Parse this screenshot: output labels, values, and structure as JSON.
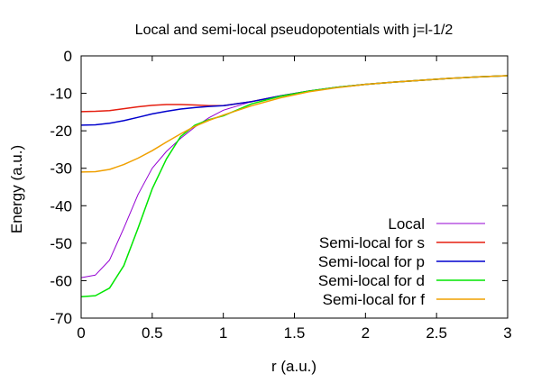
{
  "chart_data": {
    "type": "line",
    "title": "Local and semi-local pseudopotentials with j=l-1/2",
    "xlabel": "r (a.u.)",
    "ylabel": "Energy (a.u.)",
    "xlim": [
      0,
      3
    ],
    "ylim": [
      -70,
      0
    ],
    "xticks": [
      0,
      0.5,
      1,
      1.5,
      2,
      2.5,
      3
    ],
    "xtick_labels": [
      "0",
      "0.5",
      "1",
      "1.5",
      "2",
      "2.5",
      "3"
    ],
    "yticks": [
      0,
      -10,
      -20,
      -30,
      -40,
      -50,
      -60,
      -70
    ],
    "ytick_labels": [
      "0",
      "-10",
      "-20",
      "-30",
      "-40",
      "-50",
      "-60",
      "-70"
    ],
    "grid": false,
    "legend_position": "bottom-right",
    "series": [
      {
        "name": "Local",
        "color": "#9400d3",
        "x": [
          0,
          0.1,
          0.2,
          0.3,
          0.4,
          0.5,
          0.6,
          0.7,
          0.8,
          0.9,
          1.0,
          1.2,
          1.4,
          1.6,
          1.8,
          2.0,
          2.2,
          2.4,
          2.6,
          2.8,
          3.0
        ],
        "y": [
          -59.2,
          -58.5,
          -54.5,
          -46.0,
          -37.0,
          -30.0,
          -25.5,
          -22.0,
          -19.0,
          -16.5,
          -14.5,
          -12.2,
          -10.7,
          -9.4,
          -8.4,
          -7.6,
          -7.0,
          -6.5,
          -6.0,
          -5.6,
          -5.3
        ]
      },
      {
        "name": "Semi-local for s",
        "color": "#e51e10",
        "x": [
          0,
          0.1,
          0.2,
          0.3,
          0.4,
          0.5,
          0.6,
          0.7,
          0.8,
          0.9,
          1.0,
          1.2,
          1.4,
          1.6,
          1.8,
          2.0,
          2.2,
          2.4,
          2.6,
          2.8,
          3.0
        ],
        "y": [
          -14.9,
          -14.8,
          -14.6,
          -14.1,
          -13.6,
          -13.2,
          -13.0,
          -13.0,
          -13.1,
          -13.3,
          -13.3,
          -12.2,
          -10.7,
          -9.4,
          -8.4,
          -7.6,
          -7.0,
          -6.5,
          -6.0,
          -5.6,
          -5.3
        ]
      },
      {
        "name": "Semi-local for p",
        "color": "#0000cd",
        "x": [
          0,
          0.1,
          0.2,
          0.3,
          0.4,
          0.5,
          0.6,
          0.7,
          0.8,
          0.9,
          1.0,
          1.2,
          1.4,
          1.6,
          1.8,
          2.0,
          2.2,
          2.4,
          2.6,
          2.8,
          3.0
        ],
        "y": [
          -18.5,
          -18.4,
          -18.0,
          -17.3,
          -16.4,
          -15.5,
          -14.8,
          -14.2,
          -13.8,
          -13.5,
          -13.3,
          -12.2,
          -10.7,
          -9.4,
          -8.4,
          -7.6,
          -7.0,
          -6.5,
          -6.0,
          -5.6,
          -5.3
        ]
      },
      {
        "name": "Semi-local for d",
        "color": "#00e600",
        "x": [
          0,
          0.1,
          0.2,
          0.3,
          0.4,
          0.5,
          0.6,
          0.7,
          0.8,
          0.9,
          1.0,
          1.2,
          1.4,
          1.6,
          1.8,
          2.0,
          2.2,
          2.4,
          2.6,
          2.8,
          3.0
        ],
        "y": [
          -64.3,
          -64.0,
          -62.0,
          -56.0,
          -46.0,
          -35.5,
          -27.5,
          -21.5,
          -18.5,
          -17.0,
          -16.0,
          -12.8,
          -10.8,
          -9.4,
          -8.4,
          -7.6,
          -7.0,
          -6.5,
          -6.0,
          -5.6,
          -5.3
        ]
      },
      {
        "name": "Semi-local for f",
        "color": "#f0a000",
        "x": [
          0,
          0.1,
          0.2,
          0.3,
          0.4,
          0.5,
          0.6,
          0.7,
          0.8,
          0.9,
          1.0,
          1.2,
          1.4,
          1.6,
          1.8,
          2.0,
          2.2,
          2.4,
          2.6,
          2.8,
          3.0
        ],
        "y": [
          -31.0,
          -30.9,
          -30.3,
          -29.0,
          -27.3,
          -25.3,
          -23.0,
          -20.8,
          -18.8,
          -17.2,
          -15.8,
          -13.3,
          -11.2,
          -9.6,
          -8.5,
          -7.6,
          -7.0,
          -6.5,
          -6.0,
          -5.6,
          -5.3
        ]
      }
    ]
  }
}
